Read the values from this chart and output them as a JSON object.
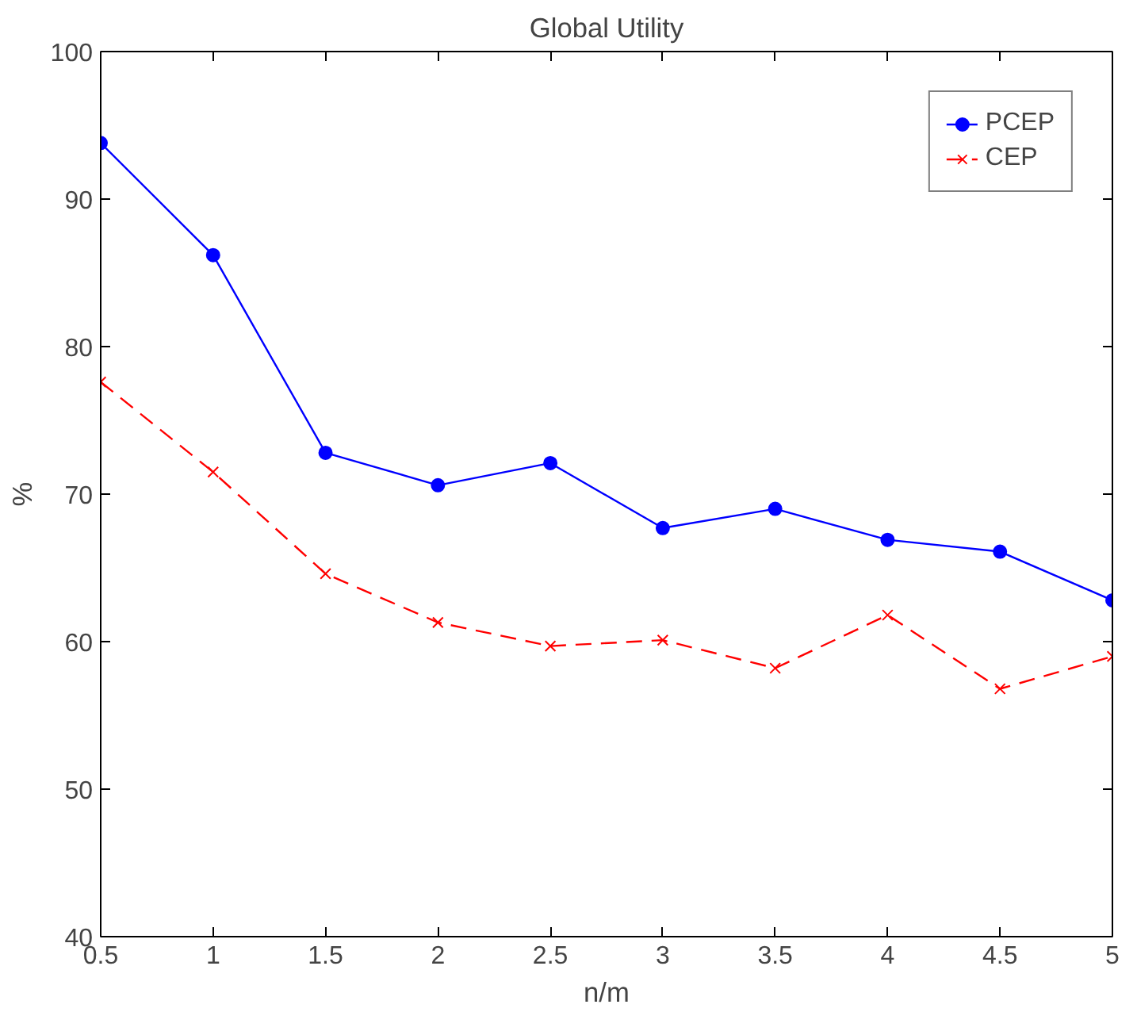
{
  "chart_data": {
    "type": "line",
    "title": "Global Utility",
    "xlabel": "n/m",
    "ylabel": "%",
    "x": [
      0.5,
      1,
      1.5,
      2,
      2.5,
      3,
      3.5,
      4,
      4.5,
      5
    ],
    "series": [
      {
        "name": "PCEP",
        "color": "#0000ff",
        "marker": "circle",
        "line_style": "solid",
        "values": [
          93.8,
          86.2,
          72.8,
          70.6,
          72.1,
          67.7,
          69.0,
          66.9,
          66.1,
          62.8
        ]
      },
      {
        "name": "CEP",
        "color": "#ff0000",
        "marker": "cross",
        "line_style": "dashed",
        "values": [
          77.6,
          71.5,
          64.6,
          61.3,
          59.7,
          60.1,
          58.2,
          61.8,
          56.8,
          59.0
        ]
      }
    ],
    "xlim": [
      0.5,
      5
    ],
    "ylim": [
      40,
      100
    ],
    "xticks": [
      0.5,
      1,
      1.5,
      2,
      2.5,
      3,
      3.5,
      4,
      4.5,
      5
    ],
    "yticks": [
      40,
      50,
      60,
      70,
      80,
      90,
      100
    ],
    "grid": false,
    "legend": "top right"
  }
}
